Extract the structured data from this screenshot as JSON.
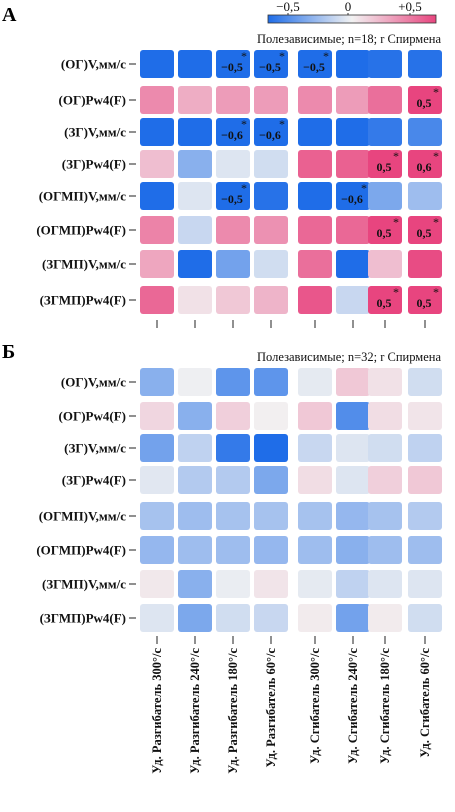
{
  "chart_data": [
    {
      "type": "heatmap",
      "panel_label": "А",
      "title": "Полезависимые; n=18; r Спирмена",
      "rows": [
        "(ОГ)V,мм/с",
        "(ОГ)Pw4(F)",
        "(ЗГ)V,мм/с",
        "(ЗГ)Pw4(F)",
        "(ОГМП)V,мм/с",
        "(ОГМП)Pw4(F)",
        "(ЗГМП)V,мм/с",
        "(ЗГМП)Pw4(F)"
      ],
      "columns": [
        "Уд. Разгибатель 300°/с",
        "Уд. Разгибатель 240°/с",
        "Уд. Разгибатель 180°/с",
        "Уд. Разгибатель 60°/с",
        "Уд. Сгибатель 300°/с",
        "Уд. Сгибатель 240°/с",
        "Уд. Сгибатель 180°/с",
        "Уд. Сгибатель 60°/с"
      ],
      "values": [
        [
          -0.55,
          -0.55,
          -0.5,
          -0.5,
          -0.5,
          -0.52,
          -0.48,
          -0.48
        ],
        [
          0.3,
          0.2,
          0.25,
          0.25,
          0.3,
          0.25,
          0.38,
          0.5
        ],
        [
          -0.55,
          -0.52,
          -0.6,
          -0.6,
          -0.52,
          -0.5,
          -0.45,
          -0.4
        ],
        [
          0.15,
          -0.25,
          -0.05,
          -0.08,
          0.42,
          0.42,
          0.5,
          0.6
        ],
        [
          -0.55,
          -0.05,
          -0.5,
          -0.48,
          -0.52,
          -0.6,
          -0.28,
          -0.2
        ],
        [
          0.32,
          -0.1,
          0.3,
          0.28,
          0.4,
          0.4,
          0.5,
          0.5
        ],
        [
          0.22,
          -0.52,
          -0.3,
          -0.08,
          0.38,
          -0.55,
          0.15,
          0.48
        ],
        [
          0.4,
          0.05,
          0.12,
          0.18,
          0.45,
          -0.1,
          0.5,
          0.5
        ]
      ],
      "labels": [
        [
          "",
          "",
          "−0,5",
          "−0,5",
          "−0,5",
          "",
          "",
          ""
        ],
        [
          "",
          "",
          "",
          "",
          "",
          "",
          "",
          "0,5"
        ],
        [
          "",
          "",
          "−0,6",
          "−0,6",
          "",
          "",
          "",
          ""
        ],
        [
          "",
          "",
          "",
          "",
          "",
          "",
          "0,5",
          "0,6"
        ],
        [
          "",
          "",
          "−0,5",
          "",
          "",
          "−0,6",
          "",
          ""
        ],
        [
          "",
          "",
          "",
          "",
          "",
          "",
          "0,5",
          "0,5"
        ],
        [
          "",
          "",
          "",
          "",
          "",
          "",
          "",
          ""
        ],
        [
          "",
          "",
          "",
          "",
          "",
          "",
          "0,5",
          "0,5"
        ]
      ],
      "significant": [
        [
          0,
          0,
          1,
          1,
          1,
          0,
          0,
          0
        ],
        [
          0,
          0,
          0,
          0,
          0,
          0,
          0,
          1
        ],
        [
          0,
          0,
          1,
          1,
          0,
          0,
          0,
          0
        ],
        [
          0,
          0,
          0,
          0,
          0,
          0,
          1,
          1
        ],
        [
          0,
          0,
          1,
          0,
          0,
          1,
          0,
          0
        ],
        [
          0,
          0,
          0,
          0,
          0,
          0,
          1,
          1
        ],
        [
          0,
          0,
          0,
          0,
          0,
          0,
          0,
          0
        ],
        [
          0,
          0,
          0,
          0,
          0,
          0,
          1,
          1
        ]
      ],
      "star_symbol": "*"
    },
    {
      "type": "heatmap",
      "panel_label": "Б",
      "title": "Полезависимые; n=32; r Спирмена",
      "rows": [
        "(ОГ)V,мм/с",
        "(ОГ)Pw4(F)",
        "(ЗГ)V,мм/с",
        "(ЗГ)Pw4(F)",
        "(ОГМП)V,мм/с",
        "(ОГМП)Pw4(F)",
        "(ЗГМП)V,мм/с",
        "(ЗГМП)Pw4(F)"
      ],
      "columns": [
        "Уд. Разгибатель 300°/с",
        "Уд. Разгибатель 240°/с",
        "Уд. Разгибатель 180°/с",
        "Уд. Разгибатель 60°/с",
        "Уд. Сгибатель 300°/с",
        "Уд. Сгибатель 240°/с",
        "Уд. Сгибатель 180°/с",
        "Уд. Сгибатель 60°/с"
      ],
      "values": [
        [
          -0.25,
          -0.01,
          -0.35,
          -0.35,
          -0.03,
          0.12,
          0.05,
          -0.08
        ],
        [
          0.08,
          -0.25,
          0.1,
          0.01,
          0.12,
          -0.38,
          0.06,
          0.04
        ],
        [
          -0.3,
          -0.12,
          -0.45,
          -0.5,
          -0.1,
          -0.05,
          -0.08,
          -0.12
        ],
        [
          -0.04,
          -0.15,
          -0.15,
          -0.28,
          0.06,
          -0.05,
          0.1,
          0.12
        ],
        [
          -0.18,
          -0.2,
          -0.18,
          -0.18,
          -0.18,
          -0.22,
          -0.18,
          -0.15
        ],
        [
          -0.22,
          -0.2,
          -0.2,
          -0.22,
          -0.2,
          -0.25,
          -0.2,
          -0.2
        ],
        [
          0.03,
          -0.25,
          -0.02,
          0.04,
          -0.03,
          -0.12,
          -0.05,
          -0.05
        ],
        [
          -0.05,
          -0.28,
          -0.08,
          -0.1,
          0.02,
          -0.3,
          0.02,
          -0.08
        ]
      ]
    }
  ],
  "legend": {
    "ticks": [
      "−0,5",
      "0",
      "+0,5"
    ],
    "min": -0.5,
    "max": 0.5
  },
  "colors": {
    "negative": "#1f6de8",
    "neutral": "#f2f2f2",
    "positive": "#e8457f"
  }
}
